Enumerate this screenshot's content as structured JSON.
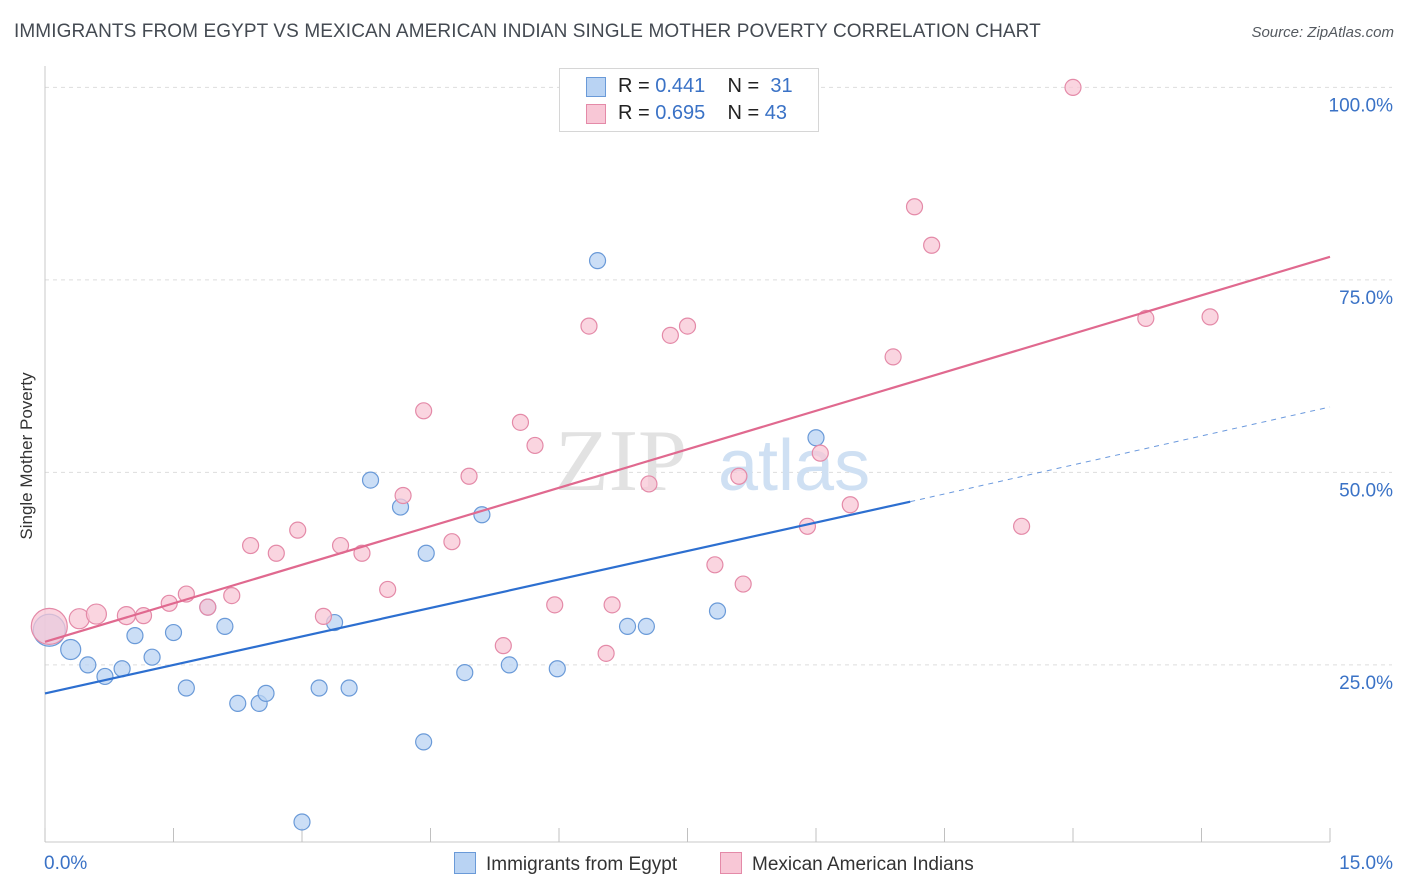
{
  "title": "IMMIGRANTS FROM EGYPT VS MEXICAN AMERICAN INDIAN SINGLE MOTHER POVERTY CORRELATION CHART",
  "source": "Source: ZipAtlas.com",
  "watermark": {
    "part1": "ZIP",
    "part2": "atlas"
  },
  "legend": {
    "rows": [
      {
        "r_label": "R =",
        "r_value": "0.441",
        "n_label": "N =",
        "n_value": "31"
      },
      {
        "r_label": "R =",
        "r_value": "0.695",
        "n_label": "N =",
        "n_value": "43"
      }
    ]
  },
  "bottom_legend": {
    "series1": "Immigrants from Egypt",
    "series2": "Mexican American Indians"
  },
  "colors": {
    "blue_fill": "#b9d3f3",
    "blue_stroke": "#6a9ad8",
    "blue_line": "#2d6fd0",
    "pink_fill": "#f8c7d6",
    "pink_stroke": "#e48aa8",
    "pink_line": "#e0698f",
    "tick_label": "#3a72c6",
    "grid": "#dddddd"
  },
  "chart_data": {
    "type": "scatter",
    "title": "IMMIGRANTS FROM EGYPT VS MEXICAN AMERICAN INDIAN SINGLE MOTHER POVERTY CORRELATION CHART",
    "xlabel": "",
    "ylabel": "Single Mother Poverty",
    "xlim": [
      0,
      15
    ],
    "ylim": [
      2,
      102
    ],
    "x_tick_labels": [
      "0.0%",
      "15.0%"
    ],
    "y_ticks": [
      25,
      50,
      75,
      100
    ],
    "y_tick_labels": [
      "25.0%",
      "50.0%",
      "75.0%",
      "100.0%"
    ],
    "grid": true,
    "legend_position": "top-center",
    "series": [
      {
        "name": "Immigrants from Egypt",
        "color": "#b9d3f3",
        "r": 0.441,
        "n": 31,
        "points": [
          [
            0.05,
            29.5,
            16
          ],
          [
            0.3,
            27,
            10
          ],
          [
            0.5,
            25,
            8
          ],
          [
            0.7,
            23.5,
            8
          ],
          [
            0.9,
            24.5,
            8
          ],
          [
            1.05,
            28.8,
            8
          ],
          [
            1.25,
            26,
            8
          ],
          [
            1.5,
            29.2,
            8
          ],
          [
            1.65,
            22,
            8
          ],
          [
            1.9,
            32.5,
            8
          ],
          [
            2.1,
            30,
            8
          ],
          [
            2.25,
            20,
            8
          ],
          [
            2.5,
            20,
            8
          ],
          [
            2.58,
            21.3,
            8
          ],
          [
            3.0,
            4.6,
            8
          ],
          [
            3.2,
            22,
            8
          ],
          [
            3.38,
            30.5,
            8
          ],
          [
            3.55,
            22,
            8
          ],
          [
            3.8,
            49,
            8
          ],
          [
            4.15,
            45.5,
            8
          ],
          [
            4.42,
            15,
            8
          ],
          [
            4.45,
            39.5,
            8
          ],
          [
            4.9,
            24,
            8
          ],
          [
            5.1,
            44.5,
            8
          ],
          [
            5.42,
            25,
            8
          ],
          [
            5.98,
            24.5,
            8
          ],
          [
            6.45,
            77.5,
            8
          ],
          [
            6.8,
            30,
            8
          ],
          [
            7.02,
            30,
            8
          ],
          [
            7.85,
            32,
            8
          ],
          [
            9.0,
            54.5,
            8
          ]
        ],
        "trend": {
          "x": [
            0,
            10.1
          ],
          "y": [
            21.3,
            46.2
          ],
          "dashed_to": [
            15,
            58.5
          ]
        }
      },
      {
        "name": "Mexican American Indians",
        "color": "#f8c7d6",
        "r": 0.695,
        "n": 43,
        "points": [
          [
            0.05,
            30,
            18
          ],
          [
            0.4,
            31,
            10
          ],
          [
            0.6,
            31.6,
            10
          ],
          [
            0.95,
            31.4,
            9
          ],
          [
            1.15,
            31.4,
            8
          ],
          [
            1.45,
            33,
            8
          ],
          [
            1.65,
            34.2,
            8
          ],
          [
            1.9,
            32.5,
            8
          ],
          [
            2.18,
            34,
            8
          ],
          [
            2.4,
            40.5,
            8
          ],
          [
            2.7,
            39.5,
            8
          ],
          [
            2.95,
            42.5,
            8
          ],
          [
            3.25,
            31.3,
            8
          ],
          [
            3.45,
            40.5,
            8
          ],
          [
            3.7,
            39.5,
            8
          ],
          [
            4.0,
            34.8,
            8
          ],
          [
            4.18,
            47,
            8
          ],
          [
            4.42,
            58,
            8
          ],
          [
            4.75,
            41,
            8
          ],
          [
            4.95,
            49.5,
            8
          ],
          [
            5.35,
            27.5,
            8
          ],
          [
            5.55,
            56.5,
            8
          ],
          [
            5.72,
            53.5,
            8
          ],
          [
            5.95,
            32.8,
            8
          ],
          [
            6.35,
            69,
            8
          ],
          [
            6.55,
            26.5,
            8
          ],
          [
            6.62,
            32.8,
            8
          ],
          [
            7.05,
            48.5,
            8
          ],
          [
            7.3,
            67.8,
            8
          ],
          [
            7.5,
            69,
            8
          ],
          [
            7.82,
            38,
            8
          ],
          [
            8.1,
            49.5,
            8
          ],
          [
            8.15,
            35.5,
            8
          ],
          [
            8.9,
            43,
            8
          ],
          [
            9.05,
            52.5,
            8
          ],
          [
            9.4,
            45.8,
            8
          ],
          [
            9.9,
            65,
            8
          ],
          [
            10.15,
            84.5,
            8
          ],
          [
            10.35,
            79.5,
            8
          ],
          [
            11.4,
            43,
            8
          ],
          [
            12.0,
            100,
            8
          ],
          [
            12.85,
            70,
            8
          ],
          [
            13.6,
            70.2,
            8
          ]
        ],
        "trend": {
          "x": [
            0,
            15
          ],
          "y": [
            28,
            78
          ]
        }
      }
    ]
  }
}
